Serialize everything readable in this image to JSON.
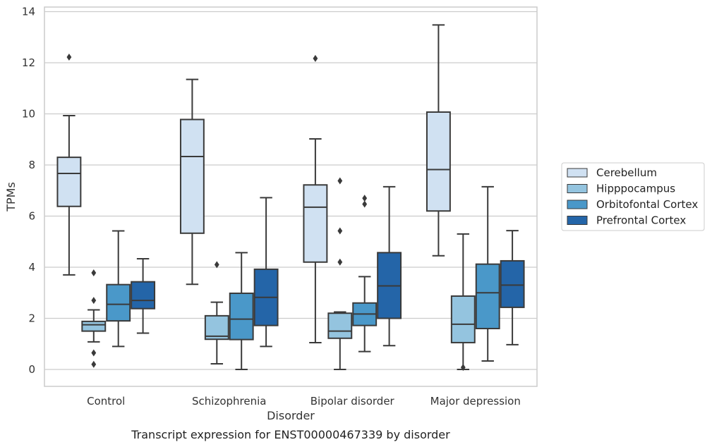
{
  "chart_data": {
    "type": "box",
    "xlabel": "Disorder",
    "ylabel": "TPMs",
    "caption": "Transcript expression for ENST00000467339 by disorder",
    "ylim": [
      -0.65,
      14.2
    ],
    "yticks": [
      0,
      2,
      4,
      6,
      8,
      10,
      12,
      14
    ],
    "grid": "horizontal",
    "legend_position": "right",
    "categories": [
      "Control",
      "Schizophrenia",
      "Bipolar disorder",
      "Major depression"
    ],
    "series": [
      {
        "name": "Cerebellum",
        "color": "#d0e1f2",
        "boxes": [
          {
            "whislo": 3.7,
            "q1": 6.38,
            "med": 7.67,
            "q3": 8.3,
            "whishi": 9.93,
            "fliers": [
              12.22
            ]
          },
          {
            "whislo": 3.33,
            "q1": 5.33,
            "med": 8.33,
            "q3": 9.78,
            "whishi": 11.35,
            "fliers": []
          },
          {
            "whislo": 1.05,
            "q1": 4.2,
            "med": 6.35,
            "q3": 7.22,
            "whishi": 9.02,
            "fliers": [
              12.17
            ]
          },
          {
            "whislo": 4.45,
            "q1": 6.2,
            "med": 7.82,
            "q3": 10.07,
            "whishi": 13.48,
            "fliers": []
          }
        ]
      },
      {
        "name": "Hipppocampus",
        "color": "#94c4df",
        "boxes": [
          {
            "whislo": 1.08,
            "q1": 1.5,
            "med": 1.75,
            "q3": 1.88,
            "whishi": 2.33,
            "fliers": [
              3.78,
              2.7,
              0.65,
              0.2
            ]
          },
          {
            "whislo": 0.22,
            "q1": 1.18,
            "med": 1.3,
            "q3": 2.1,
            "whishi": 2.63,
            "fliers": [
              4.1
            ]
          },
          {
            "whislo": 0.0,
            "q1": 1.22,
            "med": 1.5,
            "q3": 2.2,
            "whishi": 2.25,
            "fliers": [
              7.38,
              5.42,
              4.2
            ]
          },
          {
            "whislo": 0.0,
            "q1": 1.05,
            "med": 1.77,
            "q3": 2.87,
            "whishi": 5.3,
            "fliers": [
              0.08
            ]
          }
        ]
      },
      {
        "name": "Orbitofontal Cortex",
        "color": "#4a98c9",
        "boxes": [
          {
            "whislo": 0.9,
            "q1": 1.9,
            "med": 2.55,
            "q3": 3.32,
            "whishi": 5.42,
            "fliers": []
          },
          {
            "whislo": 0.0,
            "q1": 1.17,
            "med": 1.97,
            "q3": 2.98,
            "whishi": 4.57,
            "fliers": []
          },
          {
            "whislo": 0.7,
            "q1": 1.72,
            "med": 2.17,
            "q3": 2.6,
            "whishi": 3.63,
            "fliers": [
              6.7,
              6.47
            ]
          },
          {
            "whislo": 0.33,
            "q1": 1.6,
            "med": 3.0,
            "q3": 4.12,
            "whishi": 7.15,
            "fliers": []
          }
        ]
      },
      {
        "name": "Prefrontal Cortex",
        "color": "#2465a8",
        "boxes": [
          {
            "whislo": 1.42,
            "q1": 2.38,
            "med": 2.7,
            "q3": 3.43,
            "whishi": 4.33,
            "fliers": []
          },
          {
            "whislo": 0.9,
            "q1": 1.72,
            "med": 2.82,
            "q3": 3.92,
            "whishi": 6.72,
            "fliers": []
          },
          {
            "whislo": 0.93,
            "q1": 2.0,
            "med": 3.27,
            "q3": 4.57,
            "whishi": 7.15,
            "fliers": []
          },
          {
            "whislo": 0.97,
            "q1": 2.43,
            "med": 3.3,
            "q3": 4.25,
            "whishi": 5.43,
            "fliers": []
          }
        ]
      }
    ]
  }
}
